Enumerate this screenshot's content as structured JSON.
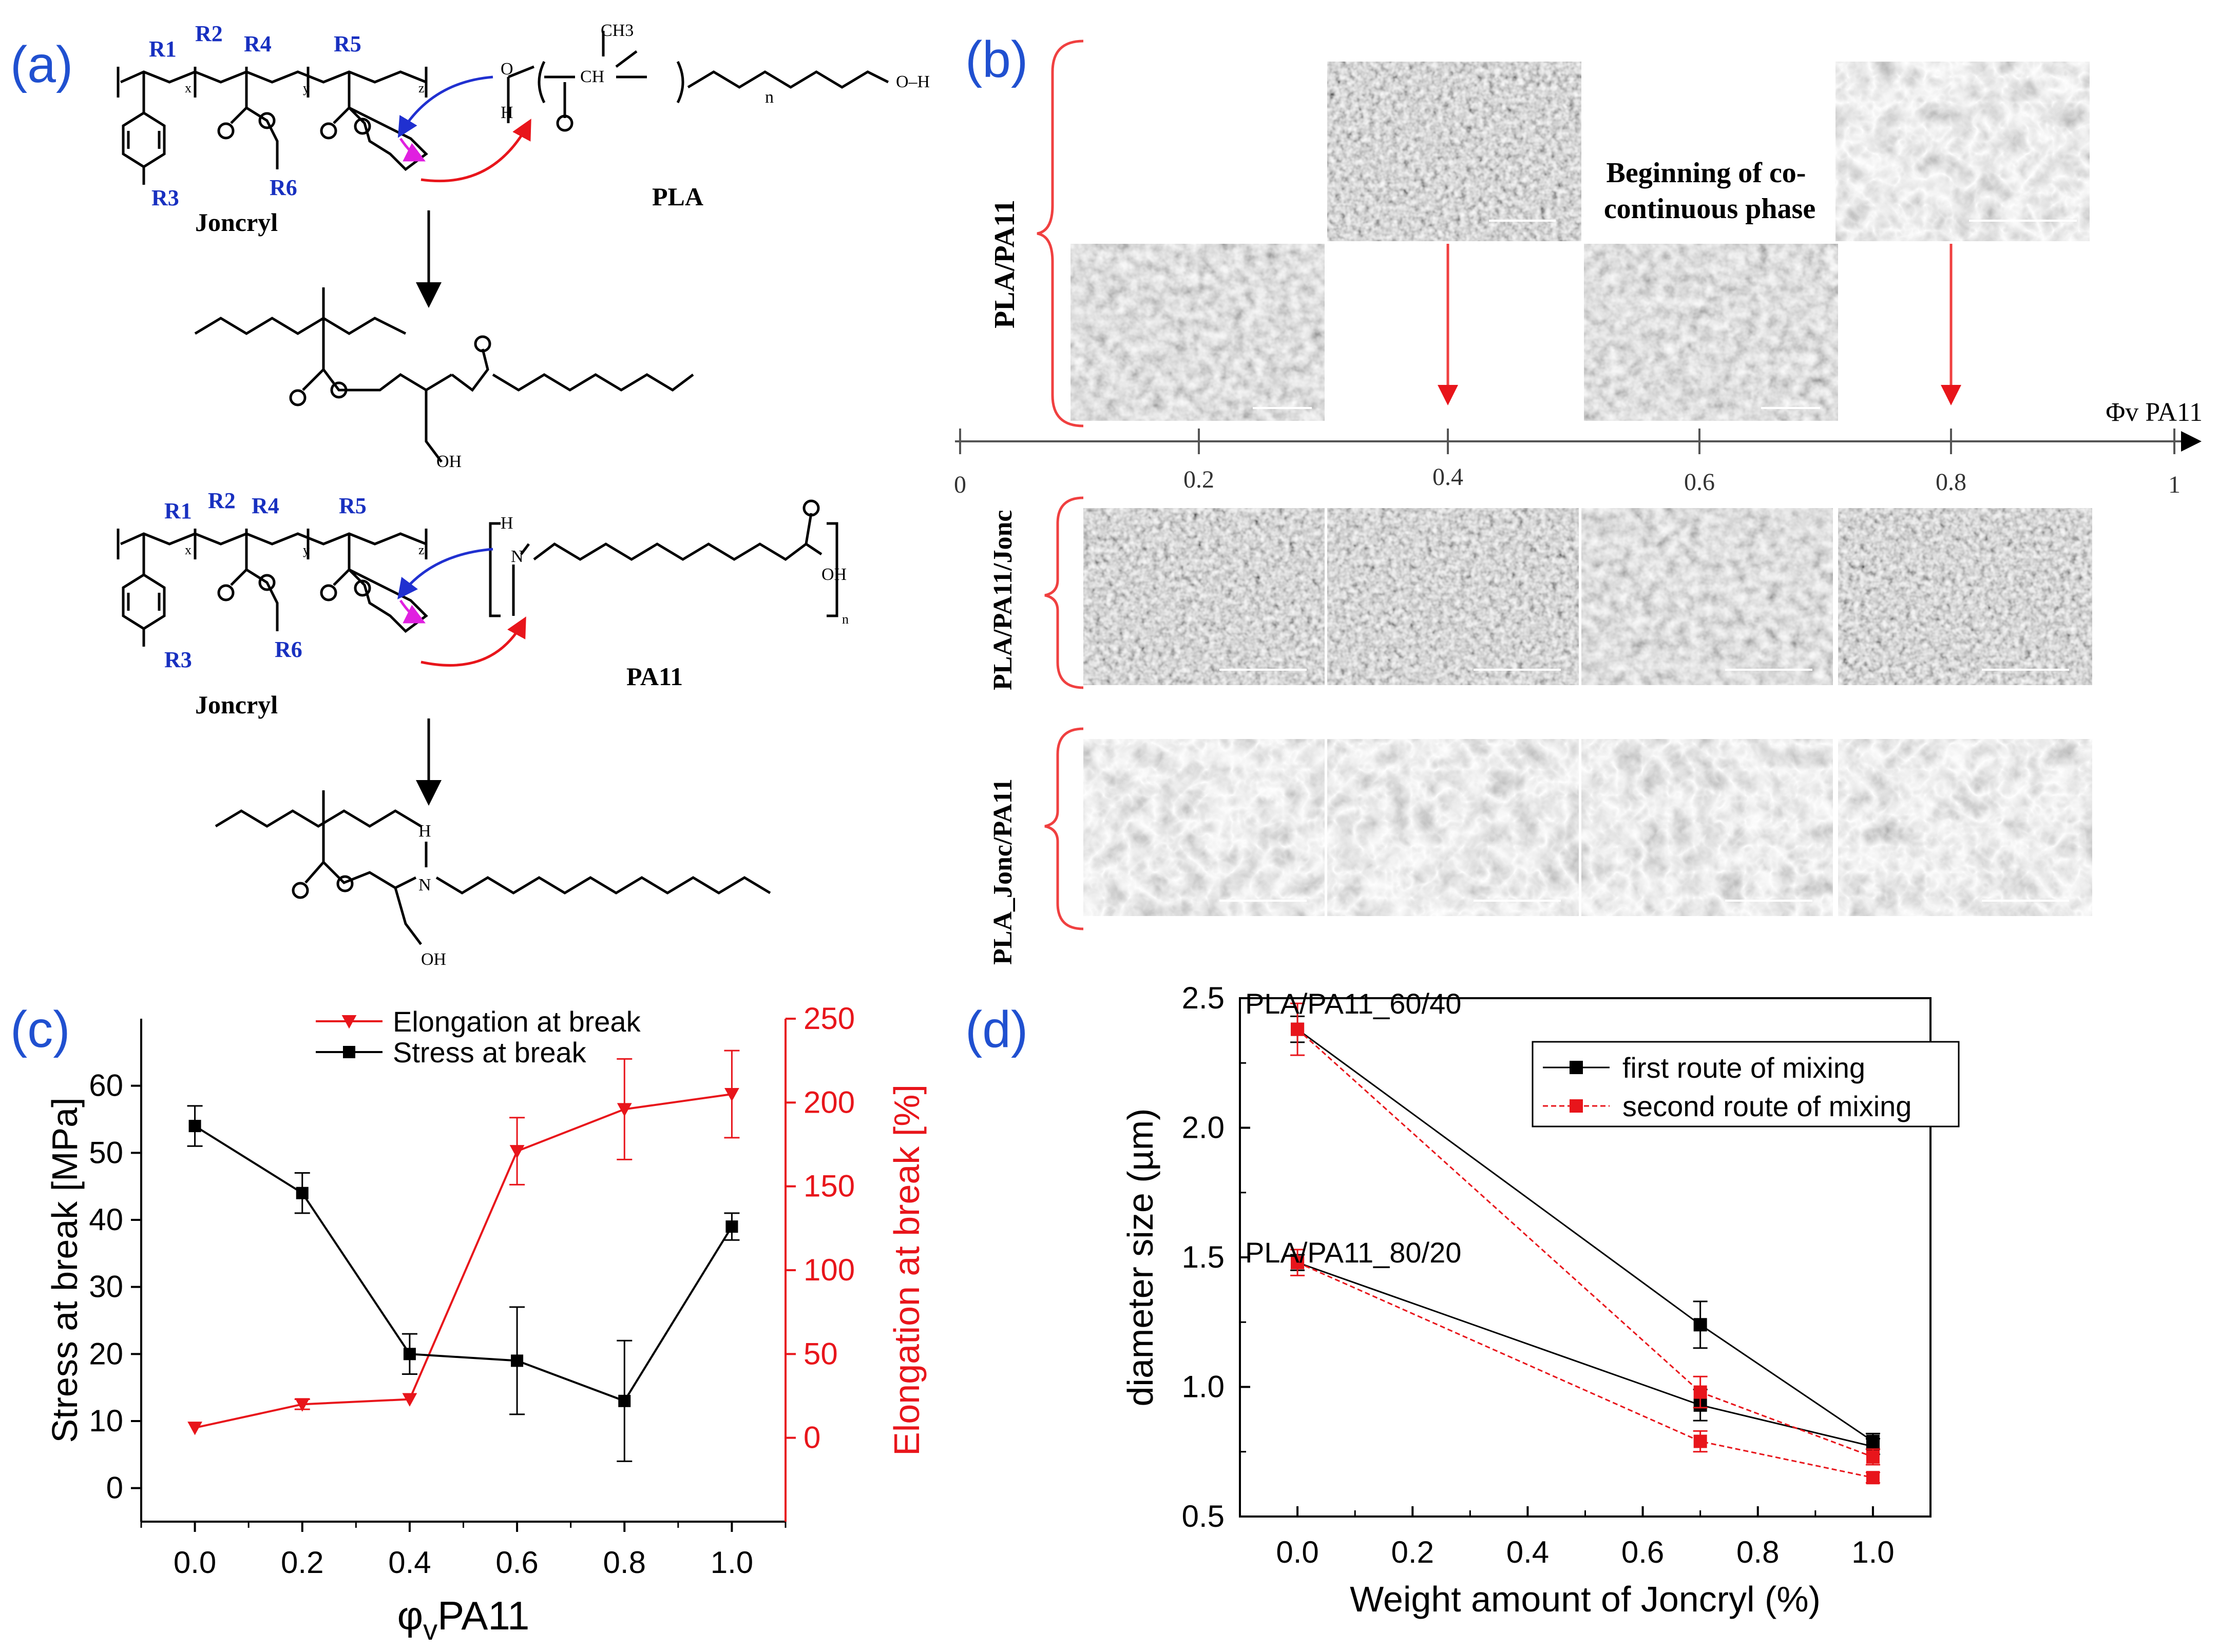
{
  "panels": {
    "a": {
      "label": "(a)",
      "top": {
        "r1": "R1",
        "r2": "R2",
        "r3": "R3",
        "r4": "R4",
        "r5": "R5",
        "r6": "R6",
        "joncryl": "Joncryl",
        "partner": "PLA",
        "ch3": "CH3",
        "ch": "CH",
        "o": "O",
        "oh": "OH",
        "oh_end": "O–H",
        "n": "n",
        "x": "x",
        "y": "y",
        "z": "z",
        "h": "H"
      },
      "bottom": {
        "r1": "R1",
        "r2": "R2",
        "r3": "R3",
        "r4": "R4",
        "r5": "R5",
        "r6": "R6",
        "joncryl": "Joncryl",
        "partner": "PA11",
        "n_atom": "N",
        "h": "H",
        "oh": "OH",
        "o": "O",
        "n": "n",
        "x": "x",
        "y": "y",
        "z": "z"
      }
    },
    "b": {
      "label": "(b)",
      "rows": [
        "PLA/PA11",
        "PLA/PA11/Jonc",
        "PLA_Jonc/PA11"
      ],
      "annotation": "Beginning of co-continuous phase",
      "axis_label": "Φv PA11",
      "ticks": [
        "0",
        "0.2",
        "0.4",
        "0.6",
        "0.8",
        "1"
      ]
    },
    "c": {
      "label": "(c)"
    },
    "d": {
      "label": "(d)"
    }
  },
  "chart_data": [
    {
      "panel": "c",
      "type": "line",
      "xlabel": "φvPA11",
      "xlabel_main": "φ",
      "xlabel_sub": "v",
      "xlabel_rest": "PA11",
      "ylabel": "Stress at break [MPa]",
      "y2label": "Elongation at break [%]",
      "xlim": [
        -0.1,
        1.1
      ],
      "ylim": [
        -5,
        70
      ],
      "y2lim": [
        -50,
        250
      ],
      "xticks": [
        0.0,
        0.2,
        0.4,
        0.6,
        0.8,
        1.0
      ],
      "xtick_labels": [
        "0.0",
        "0.2",
        "0.4",
        "0.6",
        "0.8",
        "1.0"
      ],
      "yticks": [
        0,
        10,
        20,
        30,
        40,
        50,
        60
      ],
      "ytick_labels": [
        "0",
        "10",
        "20",
        "30",
        "40",
        "50",
        "60"
      ],
      "y2ticks": [
        0,
        50,
        100,
        150,
        200,
        250
      ],
      "y2tick_labels": [
        "0",
        "50",
        "100",
        "150",
        "200",
        "250"
      ],
      "legend_position": "top",
      "colors": {
        "left": "#000000",
        "right": "#e8151b"
      },
      "series": [
        {
          "name": "Elongation at break",
          "axis": "right",
          "color": "#e8151b",
          "marker": "triangle-down",
          "x": [
            0.0,
            0.2,
            0.4,
            0.6,
            0.8,
            1.0
          ],
          "y": [
            6,
            20,
            23,
            171,
            196,
            205
          ],
          "err": [
            0,
            3,
            0,
            20,
            30,
            26
          ]
        },
        {
          "name": "Stress at break",
          "axis": "left",
          "color": "#000000",
          "marker": "square",
          "x": [
            0.0,
            0.2,
            0.4,
            0.6,
            0.8,
            1.0
          ],
          "y": [
            54,
            44,
            20,
            19,
            13,
            39
          ],
          "err": [
            3,
            3,
            3,
            8,
            9,
            2
          ]
        }
      ]
    },
    {
      "panel": "d",
      "type": "line",
      "xlabel": "Weight amount of Joncryl (%)",
      "ylabel": "diameter size (µm)",
      "xlim": [
        -0.1,
        1.1
      ],
      "ylim": [
        0.5,
        2.5
      ],
      "xticks": [
        0.0,
        0.2,
        0.4,
        0.6,
        0.8,
        1.0
      ],
      "xtick_labels": [
        "0.0",
        "0.2",
        "0.4",
        "0.6",
        "0.8",
        "1.0"
      ],
      "yticks": [
        0.5,
        1.0,
        1.5,
        2.0,
        2.5
      ],
      "ytick_labels": [
        "0.5",
        "1.0",
        "1.5",
        "2.0",
        "2.5"
      ],
      "legend_position": "top-right",
      "annotations": [
        "PLA/PA11_60/40",
        "PLA/PA11_80/20"
      ],
      "series": [
        {
          "name": "first route of mixing",
          "color": "#000000",
          "dash": false,
          "group": "60/40",
          "x": [
            0.0,
            0.7,
            1.0
          ],
          "y": [
            2.38,
            1.24,
            0.79
          ],
          "err": [
            0.05,
            0.09,
            0.03
          ]
        },
        {
          "name": "first route of mixing",
          "color": "#000000",
          "dash": false,
          "group": "80/20",
          "legend": false,
          "x": [
            0.0,
            0.7,
            1.0
          ],
          "y": [
            1.48,
            0.93,
            0.77
          ],
          "err": [
            0.03,
            0.06,
            0.03
          ]
        },
        {
          "name": "second route of mixing",
          "color": "#e8151b",
          "dash": true,
          "group": "60/40",
          "x": [
            0.0,
            0.7,
            1.0
          ],
          "y": [
            2.38,
            0.98,
            0.73
          ],
          "err": [
            0.1,
            0.06,
            0.03
          ]
        },
        {
          "name": "second route of mixing",
          "color": "#e8151b",
          "dash": true,
          "group": "80/20",
          "legend": false,
          "x": [
            0.0,
            0.7,
            1.0
          ],
          "y": [
            1.48,
            0.79,
            0.65
          ],
          "err": [
            0.05,
            0.04,
            0.02
          ]
        }
      ]
    }
  ]
}
